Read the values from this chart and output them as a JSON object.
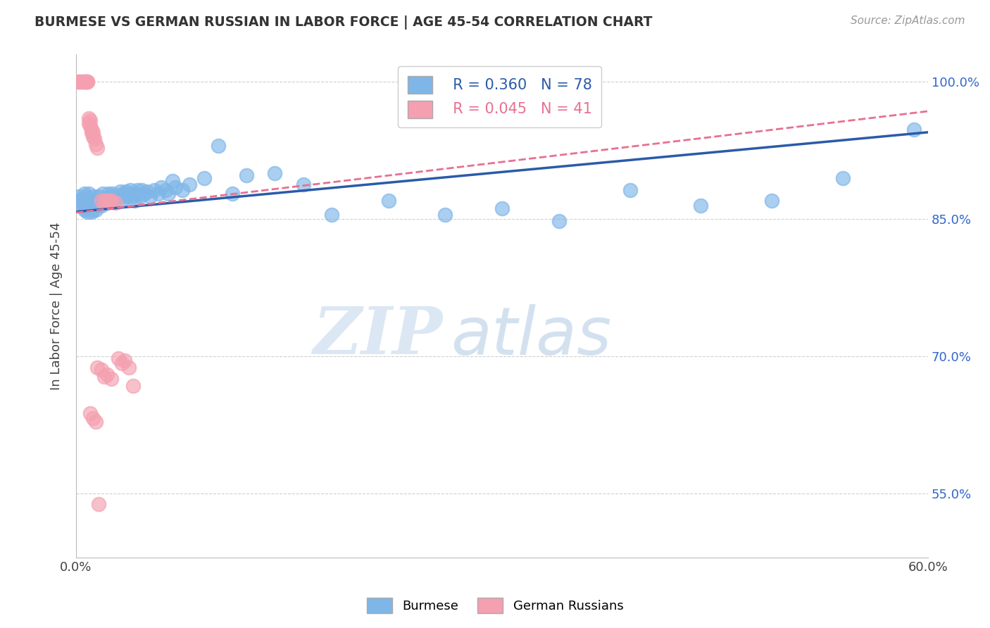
{
  "title": "BURMESE VS GERMAN RUSSIAN IN LABOR FORCE | AGE 45-54 CORRELATION CHART",
  "source": "Source: ZipAtlas.com",
  "ylabel": "In Labor Force | Age 45-54",
  "xlim": [
    0.0,
    0.6
  ],
  "ylim": [
    0.48,
    1.03
  ],
  "xticks": [
    0.0,
    0.1,
    0.2,
    0.3,
    0.4,
    0.5,
    0.6
  ],
  "xticklabels": [
    "0.0%",
    "",
    "",
    "",
    "",
    "",
    "60.0%"
  ],
  "yticks": [
    0.55,
    0.7,
    0.85,
    1.0
  ],
  "yticklabels": [
    "55.0%",
    "70.0%",
    "85.0%",
    "100.0%"
  ],
  "burmese_color": "#7EB6E8",
  "german_color": "#F4A0B0",
  "trendline_blue": "#2B5BA8",
  "trendline_pink": "#E87090",
  "legend_R_blue": "R = 0.360",
  "legend_N_blue": "N = 78",
  "legend_R_pink": "R = 0.045",
  "legend_N_pink": "N = 41",
  "watermark_zip": "ZIP",
  "watermark_atlas": "atlas",
  "burmese_x": [
    0.001,
    0.002,
    0.003,
    0.004,
    0.005,
    0.006,
    0.006,
    0.007,
    0.007,
    0.008,
    0.008,
    0.009,
    0.009,
    0.01,
    0.01,
    0.011,
    0.011,
    0.012,
    0.012,
    0.013,
    0.013,
    0.014,
    0.015,
    0.016,
    0.017,
    0.018,
    0.019,
    0.02,
    0.022,
    0.023,
    0.024,
    0.025,
    0.026,
    0.027,
    0.028,
    0.03,
    0.031,
    0.032,
    0.033,
    0.034,
    0.035,
    0.036,
    0.037,
    0.038,
    0.04,
    0.041,
    0.042,
    0.043,
    0.045,
    0.046,
    0.048,
    0.05,
    0.052,
    0.055,
    0.058,
    0.06,
    0.063,
    0.065,
    0.068,
    0.07,
    0.075,
    0.08,
    0.09,
    0.1,
    0.11,
    0.12,
    0.14,
    0.16,
    0.18,
    0.22,
    0.26,
    0.3,
    0.34,
    0.39,
    0.44,
    0.49,
    0.54,
    0.59
  ],
  "burmese_y": [
    0.87,
    0.875,
    0.868,
    0.872,
    0.865,
    0.878,
    0.86,
    0.875,
    0.862,
    0.87,
    0.858,
    0.868,
    0.878,
    0.862,
    0.872,
    0.865,
    0.858,
    0.87,
    0.86,
    0.865,
    0.875,
    0.86,
    0.868,
    0.875,
    0.87,
    0.865,
    0.878,
    0.872,
    0.868,
    0.878,
    0.875,
    0.87,
    0.878,
    0.875,
    0.872,
    0.875,
    0.88,
    0.87,
    0.878,
    0.875,
    0.88,
    0.875,
    0.878,
    0.882,
    0.875,
    0.87,
    0.878,
    0.882,
    0.875,
    0.882,
    0.878,
    0.88,
    0.875,
    0.882,
    0.878,
    0.885,
    0.882,
    0.878,
    0.892,
    0.885,
    0.882,
    0.888,
    0.895,
    0.93,
    0.878,
    0.898,
    0.9,
    0.888,
    0.855,
    0.87,
    0.855,
    0.862,
    0.848,
    0.882,
    0.865,
    0.87,
    0.895,
    0.948
  ],
  "german_x": [
    0.001,
    0.002,
    0.003,
    0.004,
    0.005,
    0.006,
    0.007,
    0.007,
    0.008,
    0.008,
    0.009,
    0.009,
    0.01,
    0.01,
    0.011,
    0.011,
    0.012,
    0.012,
    0.013,
    0.014,
    0.015,
    0.018,
    0.02,
    0.022,
    0.024,
    0.025,
    0.028,
    0.03,
    0.032,
    0.034,
    0.037,
    0.04,
    0.015,
    0.018,
    0.02,
    0.022,
    0.025,
    0.01,
    0.012,
    0.014,
    0.016
  ],
  "german_y": [
    1.0,
    1.0,
    1.0,
    1.0,
    1.0,
    1.0,
    1.0,
    1.0,
    1.0,
    1.0,
    0.96,
    0.955,
    0.952,
    0.958,
    0.945,
    0.948,
    0.94,
    0.945,
    0.938,
    0.932,
    0.928,
    0.87,
    0.87,
    0.87,
    0.87,
    0.87,
    0.868,
    0.698,
    0.692,
    0.695,
    0.688,
    0.668,
    0.688,
    0.685,
    0.678,
    0.68,
    0.675,
    0.638,
    0.632,
    0.628,
    0.538
  ]
}
